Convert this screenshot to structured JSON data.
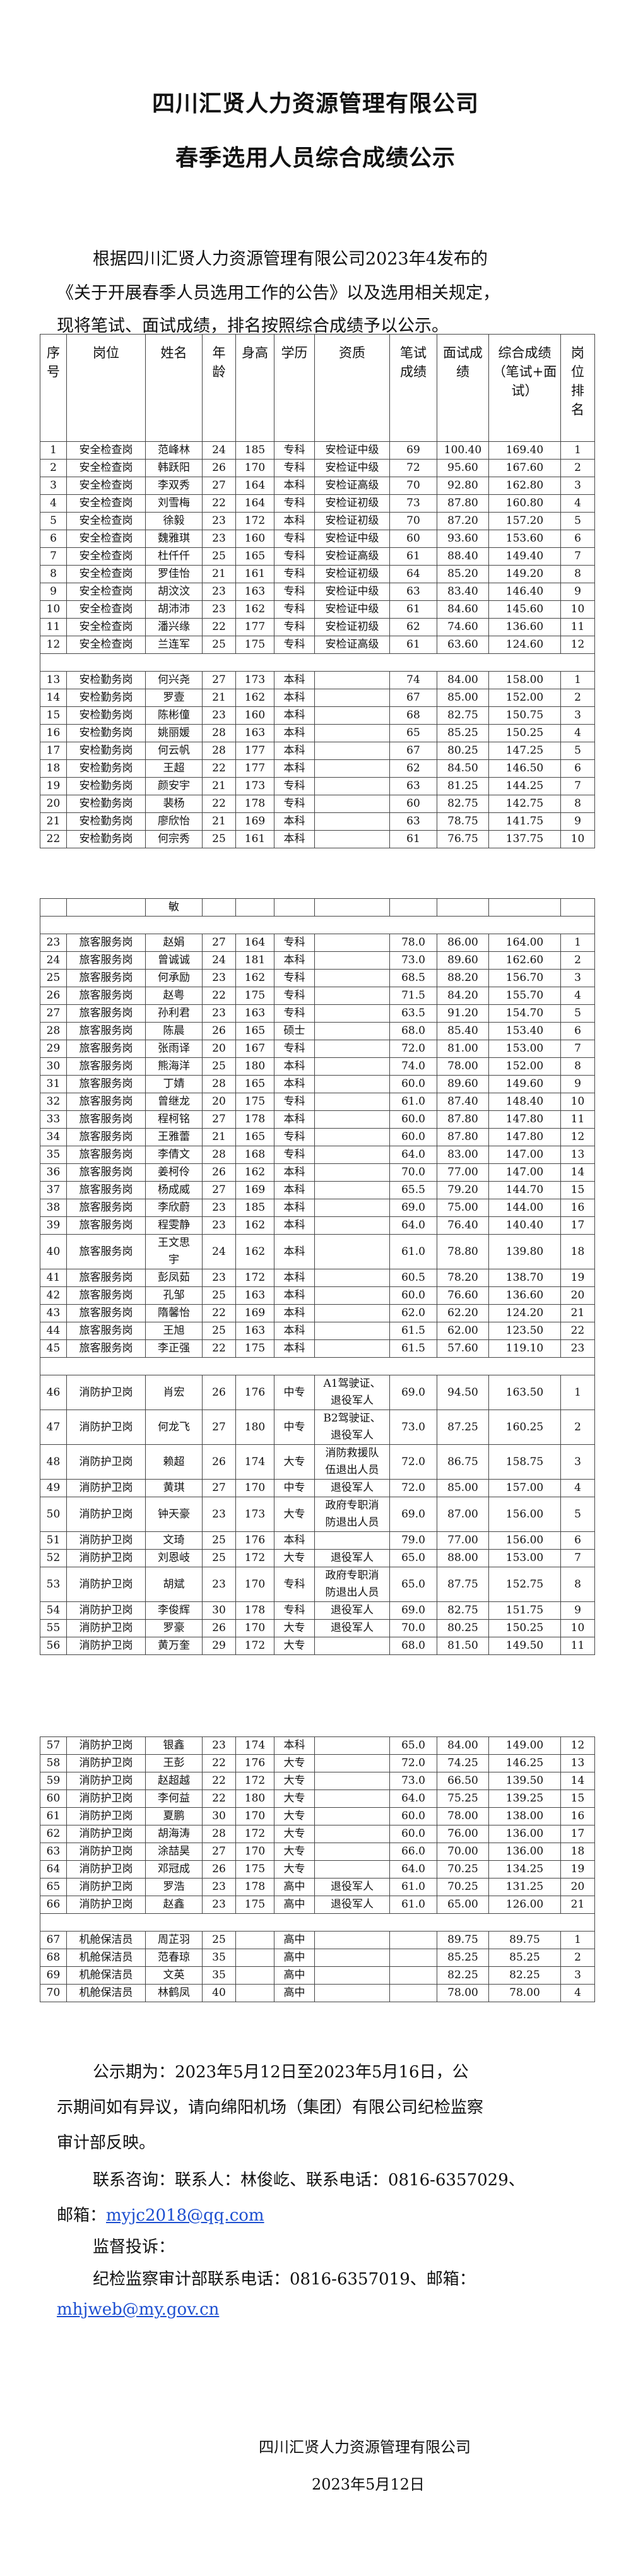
{
  "header": {
    "title_line1": "四川汇贤人力资源管理有限公司",
    "title_line2": "春季选用人员综合成绩公示"
  },
  "intro": {
    "lines": [
      "根据四川汇贤人力资源管理有限公司2023年4发布的",
      "《关于开展春季人员选用工作的公告》以及选用相关规定，",
      "现将笔试、面试成绩，排名按照综合成绩予以公示。"
    ]
  },
  "table": {
    "columns": [
      "序号",
      "岗位",
      "姓名",
      "年龄",
      "身高",
      "学历",
      "资质",
      "笔试成绩",
      "面试成绩",
      "综合成绩（笔试+面试）",
      "岗位排名"
    ],
    "blocks": [
      {
        "rows": [
          [
            "1",
            "安全检查岗",
            "范峰林",
            "24",
            "185",
            "专科",
            "安检证中级",
            "69",
            "100.40",
            "169.40",
            "1"
          ],
          [
            "2",
            "安全检查岗",
            "韩跃阳",
            "26",
            "170",
            "专科",
            "安检证中级",
            "72",
            "95.60",
            "167.60",
            "2"
          ],
          [
            "3",
            "安全检查岗",
            "李双秀",
            "27",
            "164",
            "本科",
            "安检证高级",
            "70",
            "92.80",
            "162.80",
            "3"
          ],
          [
            "4",
            "安全检查岗",
            "刘雪梅",
            "22",
            "164",
            "专科",
            "安检证初级",
            "73",
            "87.80",
            "160.80",
            "4"
          ],
          [
            "5",
            "安全检查岗",
            "徐毅",
            "23",
            "172",
            "本科",
            "安检证初级",
            "70",
            "87.20",
            "157.20",
            "5"
          ],
          [
            "6",
            "安全检查岗",
            "魏雅琪",
            "23",
            "160",
            "专科",
            "安检证中级",
            "60",
            "93.60",
            "153.60",
            "6"
          ],
          [
            "7",
            "安全检查岗",
            "杜仟仟",
            "25",
            "165",
            "专科",
            "安检证高级",
            "61",
            "88.40",
            "149.40",
            "7"
          ],
          [
            "8",
            "安全检查岗",
            "罗佳怡",
            "21",
            "161",
            "专科",
            "安检证初级",
            "64",
            "85.20",
            "149.20",
            "8"
          ],
          [
            "9",
            "安全检查岗",
            "胡汶汶",
            "23",
            "163",
            "专科",
            "安检证中级",
            "63",
            "83.40",
            "146.40",
            "9"
          ],
          [
            "10",
            "安全检查岗",
            "胡沛沛",
            "23",
            "162",
            "专科",
            "安检证中级",
            "61",
            "84.60",
            "145.60",
            "10"
          ],
          [
            "11",
            "安全检查岗",
            "潘兴缘",
            "22",
            "177",
            "专科",
            "安检证初级",
            "62",
            "74.60",
            "136.60",
            "11"
          ],
          [
            "12",
            "安全检查岗",
            "兰连军",
            "25",
            "175",
            "专科",
            "安检证高级",
            "61",
            "63.60",
            "124.60",
            "12"
          ],
          [],
          [
            "13",
            "安检勤务岗",
            "何兴尧",
            "27",
            "173",
            "本科",
            "",
            "74",
            "84.00",
            "158.00",
            "1"
          ],
          [
            "14",
            "安检勤务岗",
            "罗壹",
            "21",
            "162",
            "本科",
            "",
            "67",
            "85.00",
            "152.00",
            "2"
          ],
          [
            "15",
            "安检勤务岗",
            "陈彬僮",
            "23",
            "160",
            "本科",
            "",
            "68",
            "82.75",
            "150.75",
            "3"
          ],
          [
            "16",
            "安检勤务岗",
            "姚丽媛",
            "28",
            "163",
            "本科",
            "",
            "65",
            "85.25",
            "150.25",
            "4"
          ],
          [
            "17",
            "安检勤务岗",
            "何云帆",
            "28",
            "177",
            "本科",
            "",
            "67",
            "80.25",
            "147.25",
            "5"
          ],
          [
            "18",
            "安检勤务岗",
            "王超",
            "22",
            "177",
            "本科",
            "",
            "62",
            "84.50",
            "146.50",
            "6"
          ],
          [
            "19",
            "安检勤务岗",
            "颜安宇",
            "21",
            "173",
            "专科",
            "",
            "63",
            "81.25",
            "144.25",
            "7"
          ],
          [
            "20",
            "安检勤务岗",
            "裴杨",
            "22",
            "178",
            "专科",
            "",
            "60",
            "82.75",
            "142.75",
            "8"
          ],
          [
            "21",
            "安检勤务岗",
            "廖欣怡",
            "21",
            "169",
            "本科",
            "",
            "63",
            "78.75",
            "141.75",
            "9"
          ],
          [
            "22",
            "安检勤务岗",
            "何宗秀",
            "25",
            "161",
            "本科",
            "",
            "61",
            "76.75",
            "137.75",
            "10"
          ]
        ]
      },
      {
        "rows": [
          [
            "",
            "",
            "敏",
            "",
            "",
            "",
            "",
            "",
            "",
            "",
            ""
          ],
          [],
          [
            "23",
            "旅客服务岗",
            "赵娟",
            "27",
            "164",
            "专科",
            "",
            "78.0",
            "86.00",
            "164.00",
            "1"
          ],
          [
            "24",
            "旅客服务岗",
            "曾诚诚",
            "24",
            "181",
            "本科",
            "",
            "73.0",
            "89.60",
            "162.60",
            "2"
          ],
          [
            "25",
            "旅客服务岗",
            "何承励",
            "23",
            "162",
            "专科",
            "",
            "68.5",
            "88.20",
            "156.70",
            "3"
          ],
          [
            "26",
            "旅客服务岗",
            "赵粤",
            "22",
            "175",
            "专科",
            "",
            "71.5",
            "84.20",
            "155.70",
            "4"
          ],
          [
            "27",
            "旅客服务岗",
            "孙利君",
            "23",
            "163",
            "专科",
            "",
            "63.5",
            "91.20",
            "154.70",
            "5"
          ],
          [
            "28",
            "旅客服务岗",
            "陈晨",
            "26",
            "165",
            "硕士",
            "",
            "68.0",
            "85.40",
            "153.40",
            "6"
          ],
          [
            "29",
            "旅客服务岗",
            "张雨译",
            "20",
            "167",
            "专科",
            "",
            "72.0",
            "81.00",
            "153.00",
            "7"
          ],
          [
            "30",
            "旅客服务岗",
            "熊海洋",
            "25",
            "180",
            "本科",
            "",
            "74.0",
            "78.00",
            "152.00",
            "8"
          ],
          [
            "31",
            "旅客服务岗",
            "丁婧",
            "28",
            "165",
            "本科",
            "",
            "60.0",
            "89.60",
            "149.60",
            "9"
          ],
          [
            "32",
            "旅客服务岗",
            "曾继龙",
            "20",
            "175",
            "专科",
            "",
            "61.0",
            "87.40",
            "148.40",
            "10"
          ],
          [
            "33",
            "旅客服务岗",
            "程柯铭",
            "27",
            "178",
            "本科",
            "",
            "60.0",
            "87.80",
            "147.80",
            "11"
          ],
          [
            "34",
            "旅客服务岗",
            "王雅蕾",
            "21",
            "165",
            "专科",
            "",
            "60.0",
            "87.80",
            "147.80",
            "12"
          ],
          [
            "35",
            "旅客服务岗",
            "李倩文",
            "28",
            "168",
            "专科",
            "",
            "64.0",
            "83.00",
            "147.00",
            "13"
          ],
          [
            "36",
            "旅客服务岗",
            "姜柯伶",
            "26",
            "162",
            "本科",
            "",
            "70.0",
            "77.00",
            "147.00",
            "14"
          ],
          [
            "37",
            "旅客服务岗",
            "杨成威",
            "27",
            "169",
            "本科",
            "",
            "65.5",
            "79.20",
            "144.70",
            "15"
          ],
          [
            "38",
            "旅客服务岗",
            "李欣蔚",
            "23",
            "185",
            "本科",
            "",
            "69.0",
            "75.00",
            "144.00",
            "16"
          ],
          [
            "39",
            "旅客服务岗",
            "程雯静",
            "23",
            "162",
            "本科",
            "",
            "64.0",
            "76.40",
            "140.40",
            "17"
          ],
          [
            "40",
            "旅客服务岗",
            "王文思宇",
            "24",
            "162",
            "本科",
            "",
            "61.0",
            "78.80",
            "139.80",
            "18"
          ],
          [
            "41",
            "旅客服务岗",
            "彭凤茹",
            "23",
            "172",
            "本科",
            "",
            "60.5",
            "78.20",
            "138.70",
            "19"
          ],
          [
            "42",
            "旅客服务岗",
            "孔邹",
            "25",
            "163",
            "本科",
            "",
            "60.0",
            "76.60",
            "136.60",
            "20"
          ],
          [
            "43",
            "旅客服务岗",
            "隋馨怡",
            "22",
            "169",
            "本科",
            "",
            "62.0",
            "62.20",
            "124.20",
            "21"
          ],
          [
            "44",
            "旅客服务岗",
            "王旭",
            "25",
            "163",
            "本科",
            "",
            "61.5",
            "62.00",
            "123.50",
            "22"
          ],
          [
            "45",
            "旅客服务岗",
            "李正强",
            "22",
            "175",
            "本科",
            "",
            "61.5",
            "57.60",
            "119.10",
            "23"
          ],
          [],
          [
            "46",
            "消防护卫岗",
            "肖宏",
            "26",
            "176",
            "中专",
            "A1驾驶证、退役军人",
            "69.0",
            "94.50",
            "163.50",
            "1"
          ],
          [
            "47",
            "消防护卫岗",
            "何龙飞",
            "27",
            "180",
            "中专",
            "B2驾驶证、退役军人",
            "73.0",
            "87.25",
            "160.25",
            "2"
          ],
          [
            "48",
            "消防护卫岗",
            "赖超",
            "26",
            "174",
            "大专",
            "消防救援队伍退出人员",
            "72.0",
            "86.75",
            "158.75",
            "3"
          ],
          [
            "49",
            "消防护卫岗",
            "黄琪",
            "27",
            "170",
            "中专",
            "退役军人",
            "72.0",
            "85.00",
            "157.00",
            "4"
          ],
          [
            "50",
            "消防护卫岗",
            "钟天豪",
            "23",
            "173",
            "大专",
            "政府专职消防退出人员",
            "69.0",
            "87.00",
            "156.00",
            "5"
          ],
          [
            "51",
            "消防护卫岗",
            "文琦",
            "25",
            "176",
            "本科",
            "",
            "79.0",
            "77.00",
            "156.00",
            "6"
          ],
          [
            "52",
            "消防护卫岗",
            "刘恩岐",
            "25",
            "172",
            "大专",
            "退役军人",
            "65.0",
            "88.00",
            "153.00",
            "7"
          ],
          [
            "53",
            "消防护卫岗",
            "胡斌",
            "23",
            "170",
            "专科",
            "政府专职消防退出人员",
            "65.0",
            "87.75",
            "152.75",
            "8"
          ],
          [
            "54",
            "消防护卫岗",
            "李俊辉",
            "30",
            "178",
            "专科",
            "退役军人",
            "69.0",
            "82.75",
            "151.75",
            "9"
          ],
          [
            "55",
            "消防护卫岗",
            "罗豪",
            "26",
            "170",
            "大专",
            "退役军人",
            "70.0",
            "80.25",
            "150.25",
            "10"
          ],
          [
            "56",
            "消防护卫岗",
            "黄万奎",
            "29",
            "172",
            "大专",
            "",
            "68.0",
            "81.50",
            "149.50",
            "11"
          ]
        ]
      },
      {
        "rows": [
          [
            "57",
            "消防护卫岗",
            "银鑫",
            "23",
            "174",
            "本科",
            "",
            "65.0",
            "84.00",
            "149.00",
            "12"
          ],
          [
            "58",
            "消防护卫岗",
            "王彭",
            "22",
            "176",
            "大专",
            "",
            "72.0",
            "74.25",
            "146.25",
            "13"
          ],
          [
            "59",
            "消防护卫岗",
            "赵超越",
            "22",
            "172",
            "大专",
            "",
            "73.0",
            "66.50",
            "139.50",
            "14"
          ],
          [
            "60",
            "消防护卫岗",
            "李何益",
            "22",
            "180",
            "大专",
            "",
            "64.0",
            "75.25",
            "139.25",
            "15"
          ],
          [
            "61",
            "消防护卫岗",
            "夏鹏",
            "30",
            "170",
            "大专",
            "",
            "60.0",
            "78.00",
            "138.00",
            "16"
          ],
          [
            "62",
            "消防护卫岗",
            "胡海涛",
            "28",
            "172",
            "大专",
            "",
            "60.0",
            "76.00",
            "136.00",
            "17"
          ],
          [
            "63",
            "消防护卫岗",
            "涂喆昊",
            "27",
            "170",
            "大专",
            "",
            "66.0",
            "70.00",
            "136.00",
            "18"
          ],
          [
            "64",
            "消防护卫岗",
            "邓冠成",
            "26",
            "175",
            "大专",
            "",
            "64.0",
            "70.25",
            "134.25",
            "19"
          ],
          [
            "65",
            "消防护卫岗",
            "罗浩",
            "23",
            "178",
            "高中",
            "退役军人",
            "61.0",
            "70.25",
            "131.25",
            "20"
          ],
          [
            "66",
            "消防护卫岗",
            "赵鑫",
            "23",
            "175",
            "高中",
            "退役军人",
            "61.0",
            "65.00",
            "126.00",
            "21"
          ],
          [],
          [
            "67",
            "机舱保洁员",
            "周芷羽",
            "25",
            "",
            "高中",
            "",
            "",
            "89.75",
            "89.75",
            "1"
          ],
          [
            "68",
            "机舱保洁员",
            "范春琼",
            "35",
            "",
            "高中",
            "",
            "",
            "85.25",
            "85.25",
            "2"
          ],
          [
            "69",
            "机舱保洁员",
            "文英",
            "35",
            "",
            "高中",
            "",
            "",
            "82.25",
            "82.25",
            "3"
          ],
          [
            "70",
            "机舱保洁员",
            "林鹤凤",
            "40",
            "",
            "高中",
            "",
            "",
            "78.00",
            "78.00",
            "4"
          ]
        ]
      }
    ]
  },
  "footer": {
    "notice_line1": "公示期为：2023年5月12日至2023年5月16日，公",
    "notice_line2": "示期间如有异议，请向绵阳机场（集团）有限公司纪检监察",
    "notice_line3": "审计部反映。",
    "contact_line": "联系咨询：联系人：林俊屹、联系电话：0816-6357029、",
    "contact_email_label": "邮箱：",
    "contact_email": "myjc2018@qq.com",
    "supervision_label": "监督投诉：",
    "supervision_line": "纪检监察审计部联系电话：0816-6357019、邮箱：",
    "supervision_email": "mhjweb@my.gov.cn",
    "signature": "四川汇贤人力资源管理有限公司",
    "date": "2023年5月12日"
  },
  "colors": {
    "link": "#1d4fd0",
    "border": "#444444"
  }
}
